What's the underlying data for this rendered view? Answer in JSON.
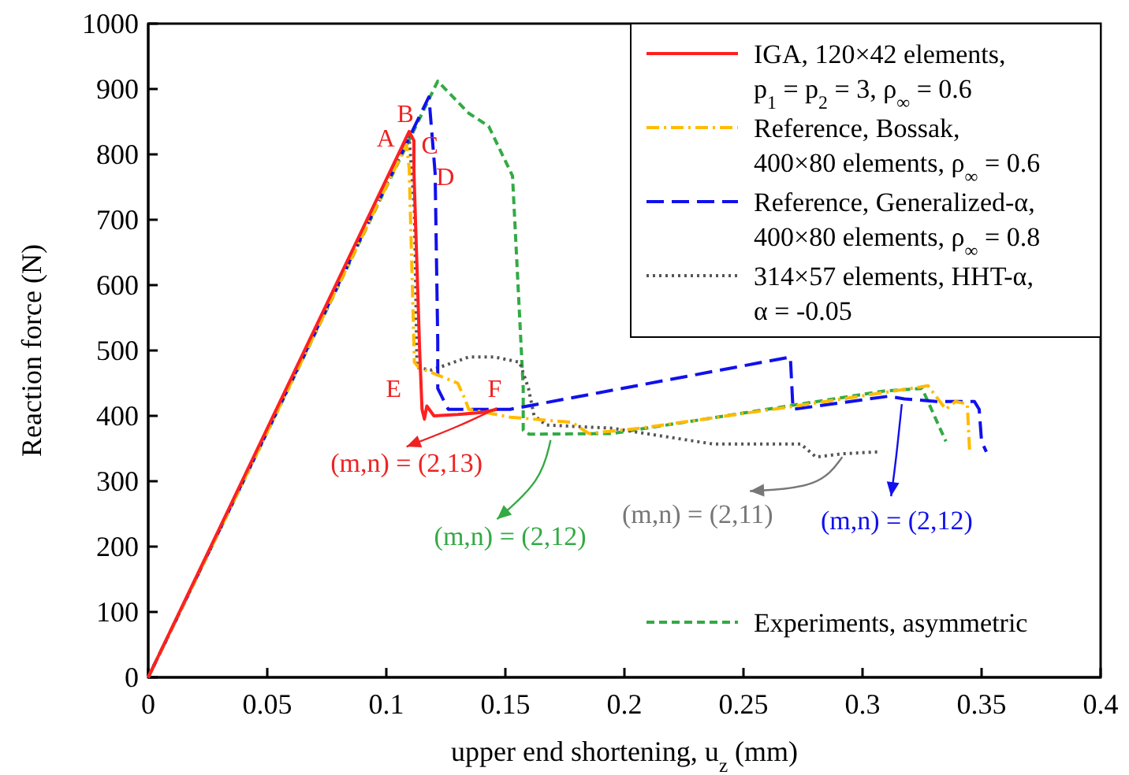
{
  "chart_data": {
    "type": "line",
    "xlabel": "upper end shortening, u$_{z}$ (mm)",
    "ylabel": "Reaction force (N)",
    "xlim": [
      0,
      0.4
    ],
    "xticks": [
      0,
      0.05,
      0.1,
      0.15,
      0.2,
      0.25,
      0.3,
      0.35,
      0.4
    ],
    "ylim": [
      0,
      1000
    ],
    "yticks": [
      0,
      100,
      200,
      300,
      400,
      500,
      600,
      700,
      800,
      900,
      1000
    ],
    "grid": false,
    "legend": "top right",
    "series": [
      {
        "name": "IGA, 120×42 elements, p$_{1}$ = p$_{2}$ = 3, ρ$_{∞}$ = 0.6",
        "color": "#ff2020",
        "line_style": "solid",
        "x": [
          0,
          0.1096,
          0.1116,
          0.1116,
          0.114,
          0.115,
          0.116,
          0.117,
          0.12,
          0.13,
          0.14,
          0.1464
        ],
        "values": [
          0,
          835,
          821,
          773,
          500,
          410,
          395,
          415,
          400,
          402,
          405,
          410
        ]
      },
      {
        "name": "Reference, Bossak, 400×80 elements, ρ$_{∞}$ = 0.6",
        "color": "#ffbb00",
        "line_style": "dashdot",
        "x": [
          0,
          0.1085,
          0.1096,
          0.1118,
          0.1137,
          0.13,
          0.133,
          0.1346,
          0.152,
          0.178,
          0.185,
          0.2065,
          0.27,
          0.3275,
          0.335,
          0.339,
          0.344,
          0.345
        ],
        "values": [
          0,
          815,
          779,
          482,
          474,
          450,
          426,
          410,
          398,
          390,
          373,
          381,
          414,
          446,
          410,
          422,
          418,
          345
        ]
      },
      {
        "name": "Reference, Generalized-α, 400×80 elements, ρ$_{∞}$ = 0.8",
        "color": "#1010ee",
        "line_style": "dashed",
        "x": [
          0,
          0.1179,
          0.1205,
          0.1216,
          0.1216,
          0.126,
          0.152,
          0.2697,
          0.2708,
          0.311,
          0.3176,
          0.331,
          0.347,
          0.349,
          0.35,
          0.352
        ],
        "values": [
          0,
          888,
          771,
          514,
          442,
          410,
          410,
          490,
          410,
          430,
          426,
          422,
          422,
          410,
          361,
          345
        ]
      },
      {
        "name": "314×57 elements, HHT-α, α = -0.05",
        "color": "#555555",
        "line_style": "dotted",
        "x": [
          0,
          0.1096,
          0.1118,
          0.1129,
          0.119,
          0.1346,
          0.1455,
          0.156,
          0.1597,
          0.162,
          0.167,
          0.195,
          0.237,
          0.274,
          0.2805,
          0.2915,
          0.3067
        ],
        "values": [
          0,
          827,
          715,
          474,
          470,
          490,
          490,
          482,
          442,
          401,
          386,
          381,
          357,
          357,
          337,
          342,
          345
        ]
      },
      {
        "name": "Experiments, asymmetric",
        "color": "#33aa44",
        "line_style": "shortdash",
        "x": [
          0,
          0.1216,
          0.1346,
          0.143,
          0.153,
          0.1564,
          0.1575,
          0.1575,
          0.16,
          0.195,
          0.309,
          0.325,
          0.335
        ],
        "values": [
          0,
          912,
          863,
          843,
          767,
          522,
          442,
          378,
          372,
          373,
          438,
          442,
          361
        ]
      }
    ],
    "annotations": [
      "A",
      "B",
      "C",
      "D",
      "E",
      "F",
      {
        "text": "(m,n) = (2,13)",
        "x": 0.1464,
        "y": 412
      },
      {
        "text": "(m,n) = (2,12)",
        "x": 0.169,
        "y": 363
      },
      {
        "text": "(m,n) = (2,11)",
        "x": 0.2915,
        "y": 337
      },
      {
        "text": "(m,n) = (2,12)",
        "x": 0.3165,
        "y": 418
      }
    ]
  }
}
